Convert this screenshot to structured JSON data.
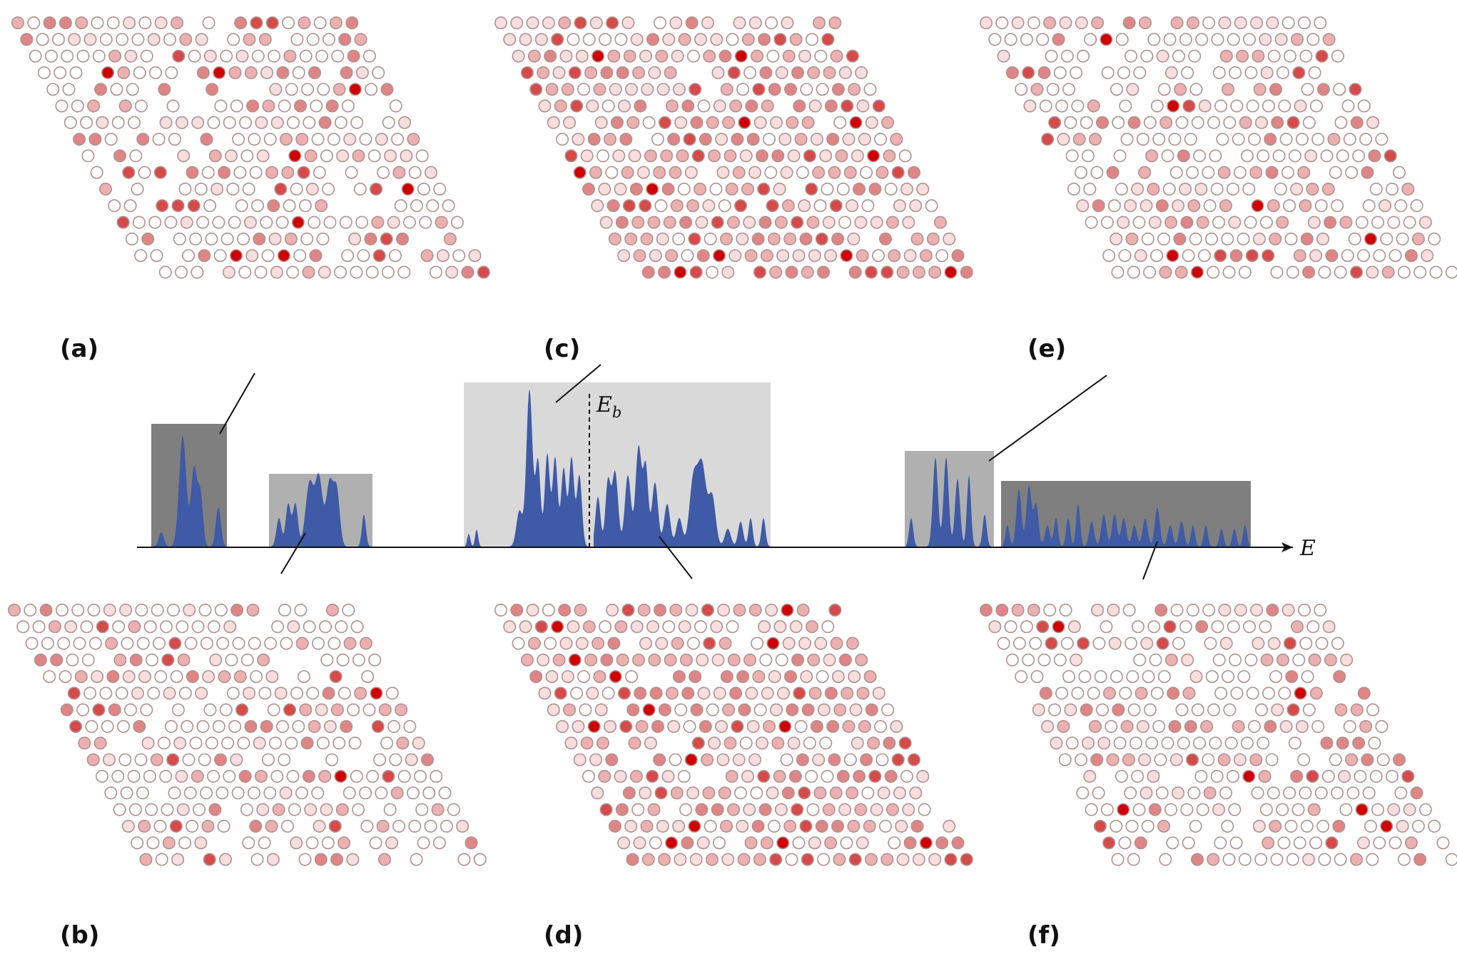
{
  "axis": {
    "label": "E"
  },
  "eb_label": {
    "main": "E",
    "sub": "b"
  },
  "panels": [
    {
      "id": "a",
      "label": "(a)",
      "seed": 11,
      "active": 0.45,
      "density": 0.85
    },
    {
      "id": "b",
      "label": "(b)",
      "seed": 23,
      "active": 0.4,
      "density": 0.85
    },
    {
      "id": "c",
      "label": "(c)",
      "seed": 37,
      "active": 0.85,
      "density": 0.95
    },
    {
      "id": "d",
      "label": "(d)",
      "seed": 41,
      "active": 0.85,
      "density": 0.95
    },
    {
      "id": "e",
      "label": "(e)",
      "seed": 53,
      "active": 0.4,
      "density": 0.85
    },
    {
      "id": "f",
      "label": "(f)",
      "seed": 67,
      "active": 0.45,
      "density": 0.85
    }
  ],
  "bands": [
    {
      "name": "band-1",
      "shade": "dark",
      "color": "#7f7f7f"
    },
    {
      "name": "band-2",
      "shade": "medium",
      "color": "#b0b0b0"
    },
    {
      "name": "band-3",
      "shade": "light",
      "color": "#d9d9d9"
    },
    {
      "name": "band-4",
      "shade": "medium",
      "color": "#b0b0b0"
    },
    {
      "name": "band-5",
      "shade": "dark",
      "color": "#7f7f7f"
    }
  ],
  "colors": {
    "dos_fill": "#3f5aa6",
    "site_outline": "#b09090",
    "site_strong": "#d40000",
    "site_empty": "#ffffff"
  }
}
